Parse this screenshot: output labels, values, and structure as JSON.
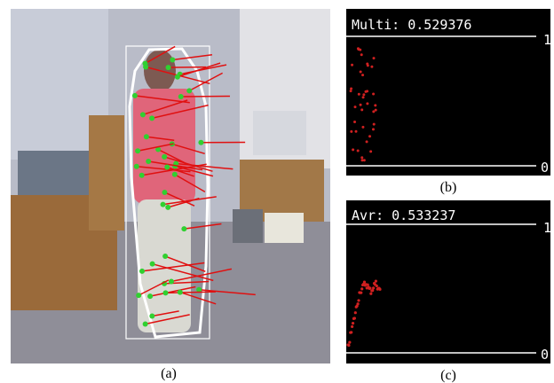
{
  "figure": {
    "panels": [
      {
        "label": "(a)"
      },
      {
        "label": "(b)",
        "title": "Multi: 0.529376",
        "top": "1",
        "bottom": "0"
      },
      {
        "label": "(c)",
        "title": "Avr: 0.533237",
        "top": "1",
        "bottom": "0"
      }
    ]
  }
}
